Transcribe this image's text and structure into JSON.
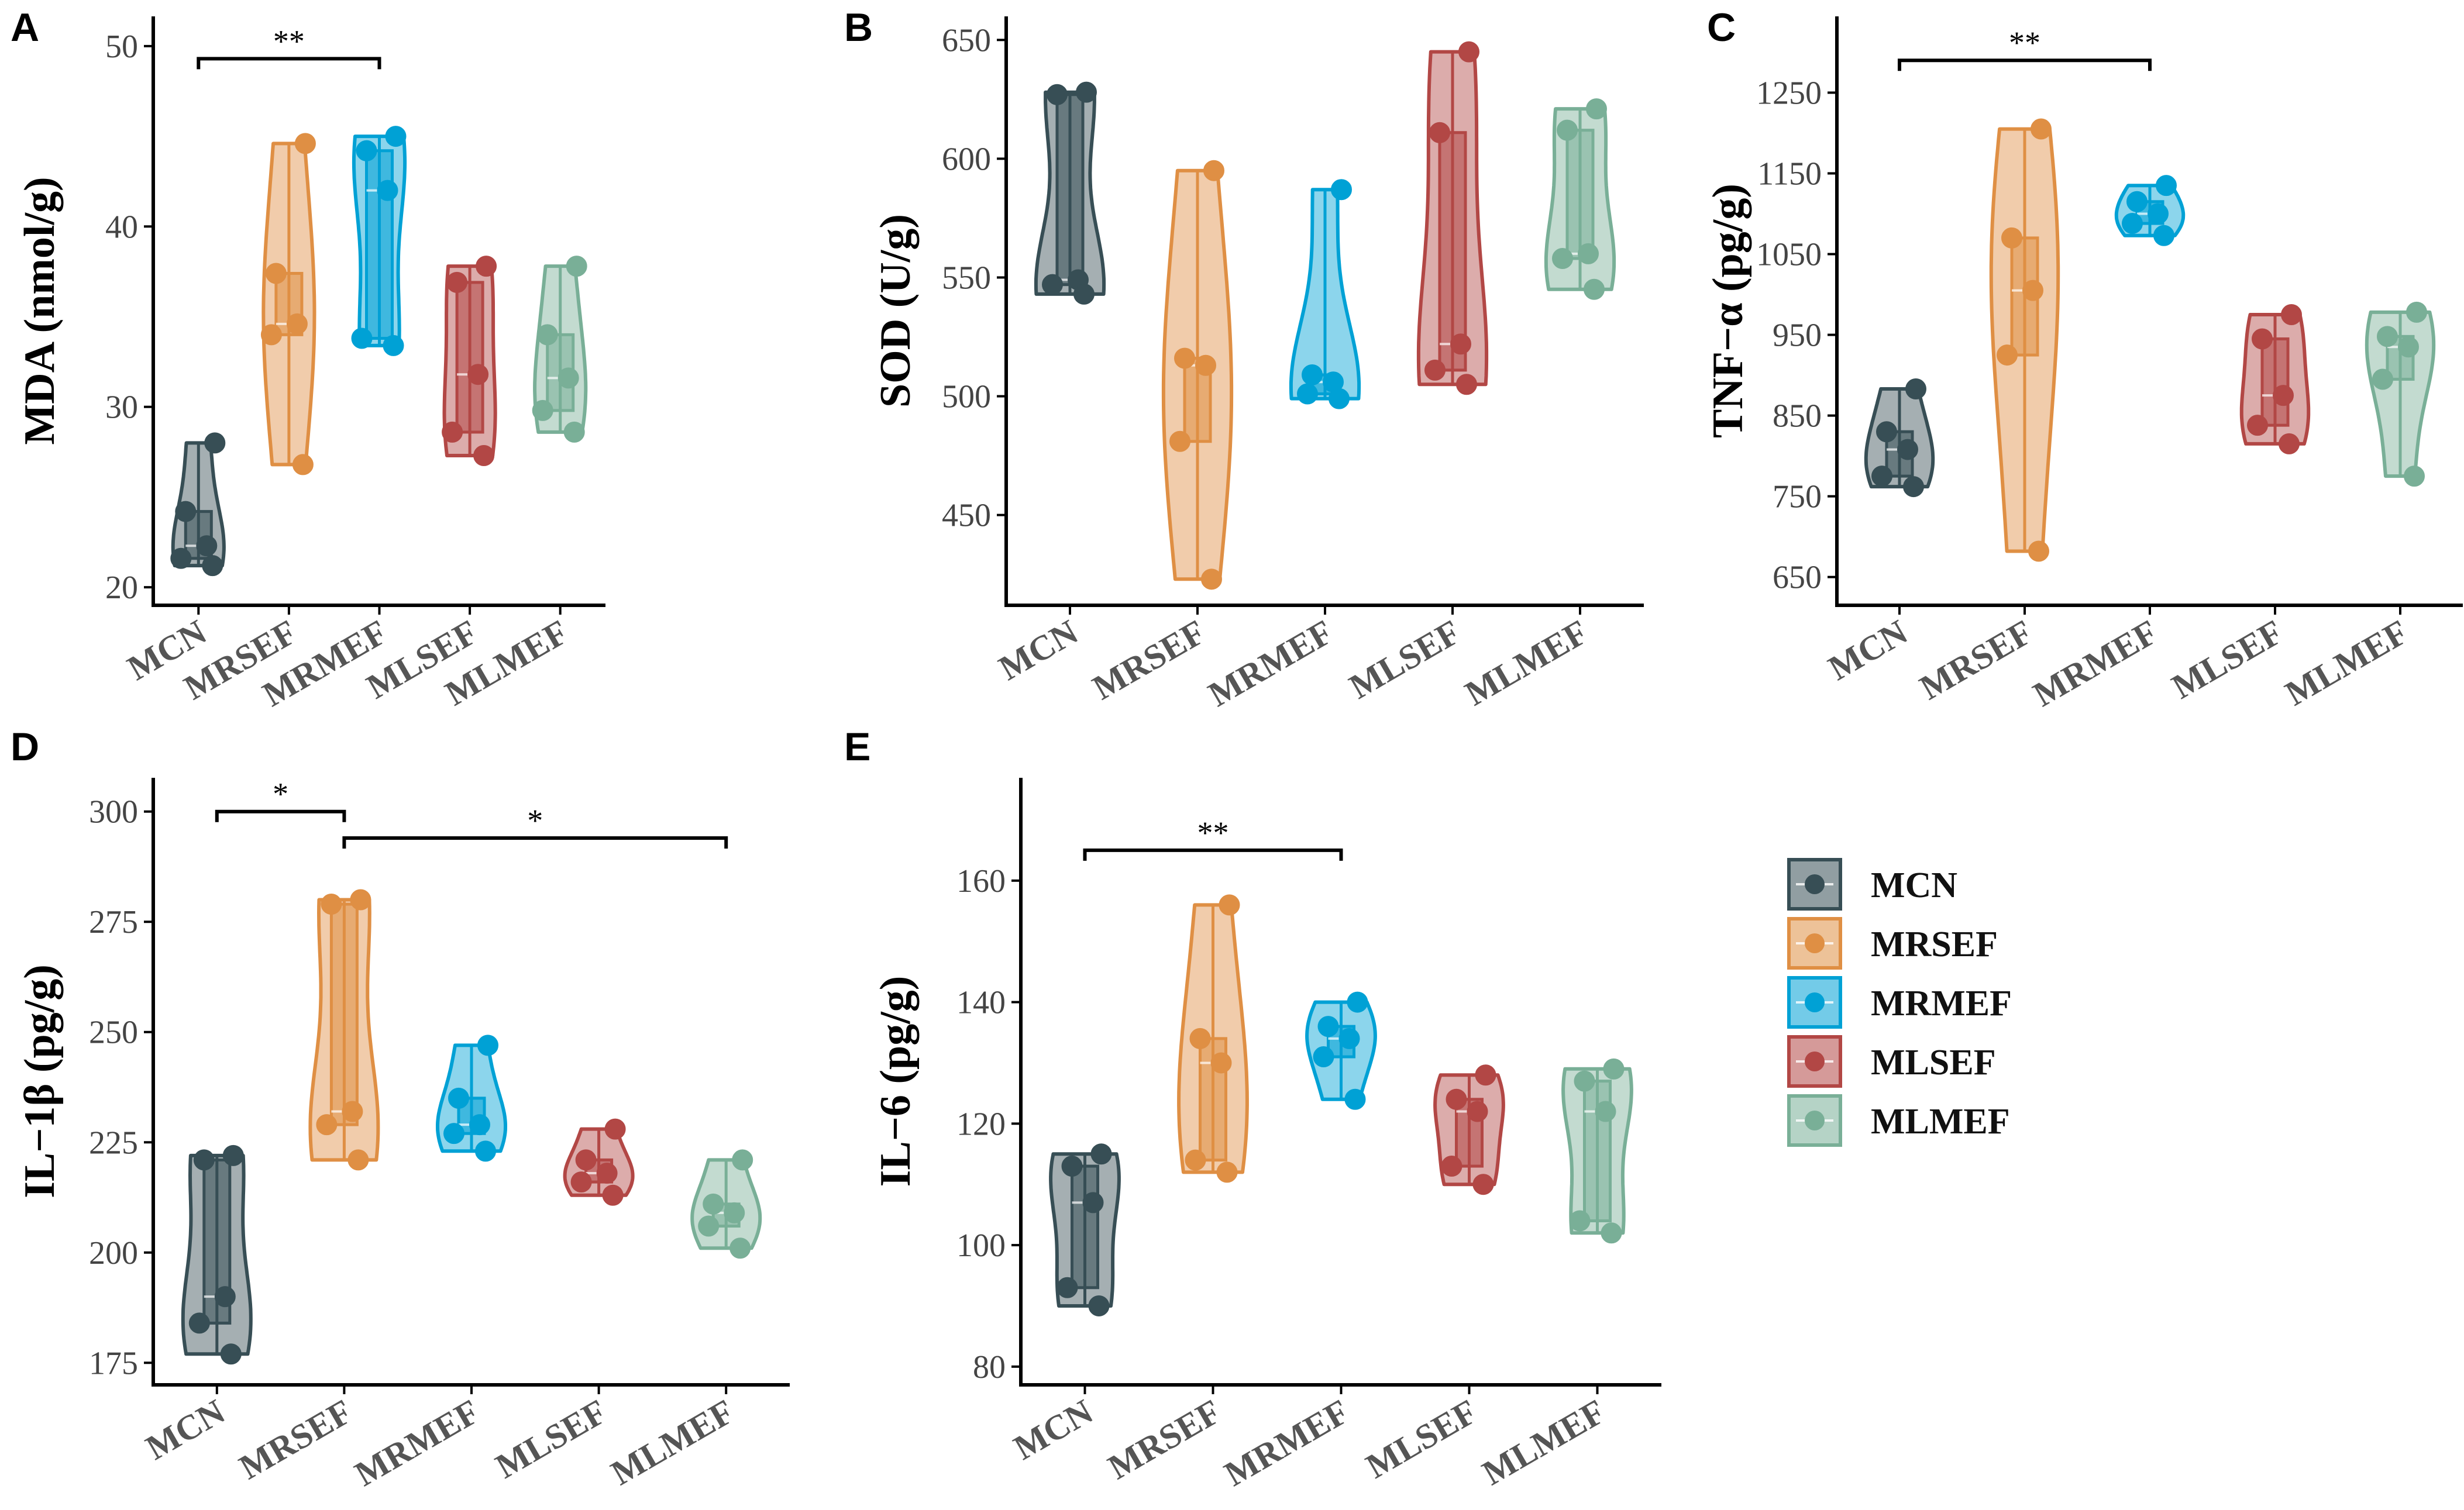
{
  "colors": {
    "MCN": "#374e55",
    "MRSEF": "#df8f44",
    "MRMEF": "#00a1d5",
    "MLSEF": "#b24745",
    "MLMEF": "#79af97"
  },
  "legend": [
    "MCN",
    "MRSEF",
    "MRMEF",
    "MLSEF",
    "MLMEF"
  ],
  "chart_data": [
    {
      "type": "violin-box",
      "panel": "A",
      "ylabel": "MDA (nmol/g)",
      "categories": [
        "MCN",
        "MRSEF",
        "MRMEF",
        "MLSEF",
        "MLMEF"
      ],
      "yticks": [
        20,
        30,
        40,
        50
      ],
      "ylim": [
        19,
        51
      ],
      "groups": [
        {
          "name": "MCN",
          "points": [
            28.0,
            24.2,
            22.3,
            21.6,
            21.2
          ],
          "min": 21.2,
          "q1": 21.6,
          "median": 22.3,
          "q3": 24.2,
          "max": 28.0
        },
        {
          "name": "MRSEF",
          "points": [
            44.6,
            37.4,
            34.6,
            34.0,
            26.8
          ],
          "min": 26.8,
          "q1": 34.0,
          "median": 34.6,
          "q3": 37.4,
          "max": 44.6
        },
        {
          "name": "MRMEF",
          "points": [
            45.0,
            44.2,
            42.0,
            33.8,
            33.4
          ],
          "min": 33.4,
          "q1": 33.8,
          "median": 42.0,
          "q3": 44.2,
          "max": 45.0
        },
        {
          "name": "MLSEF",
          "points": [
            37.8,
            36.9,
            31.8,
            28.6,
            27.3
          ],
          "min": 27.3,
          "q1": 28.6,
          "median": 31.8,
          "q3": 36.9,
          "max": 37.8
        },
        {
          "name": "MLMEF",
          "points": [
            37.8,
            34.0,
            31.6,
            29.8,
            28.6
          ],
          "min": 28.6,
          "q1": 29.8,
          "median": 31.6,
          "q3": 34.0,
          "max": 37.8
        }
      ],
      "brackets": [
        {
          "from": 0,
          "to": 2,
          "y": 49.3,
          "label": "**"
        }
      ]
    },
    {
      "type": "violin-box",
      "panel": "B",
      "ylabel": "SOD (U/g)",
      "categories": [
        "MCN",
        "MRSEF",
        "MRMEF",
        "MLSEF",
        "MLMEF"
      ],
      "yticks": [
        450,
        500,
        550,
        600,
        650
      ],
      "ylim": [
        412,
        655
      ],
      "groups": [
        {
          "name": "MCN",
          "points": [
            628,
            627,
            549,
            547,
            543
          ],
          "min": 543,
          "q1": 547,
          "median": 549,
          "q3": 627,
          "max": 628
        },
        {
          "name": "MRSEF",
          "points": [
            595,
            516,
            513,
            481,
            423
          ],
          "min": 423,
          "q1": 481,
          "median": 513,
          "q3": 516,
          "max": 595
        },
        {
          "name": "MRMEF",
          "points": [
            587,
            509,
            506,
            501,
            499
          ],
          "min": 499,
          "q1": 501,
          "median": 506,
          "q3": 509,
          "max": 587
        },
        {
          "name": "MLSEF",
          "points": [
            645,
            611,
            522,
            511,
            505
          ],
          "min": 505,
          "q1": 511,
          "median": 522,
          "q3": 611,
          "max": 645
        },
        {
          "name": "MLMEF",
          "points": [
            621,
            612,
            560,
            558,
            545
          ],
          "min": 545,
          "q1": 558,
          "median": 560,
          "q3": 612,
          "max": 621
        }
      ],
      "brackets": []
    },
    {
      "type": "violin-box",
      "panel": "C",
      "ylabel": "TNF−α (pg/g)",
      "categories": [
        "MCN",
        "MRSEF",
        "MRMEF",
        "MLSEF",
        "MLMEF"
      ],
      "yticks": [
        650,
        750,
        850,
        950,
        1050,
        1150,
        1250
      ],
      "ylim": [
        615,
        1330
      ],
      "groups": [
        {
          "name": "MCN",
          "points": [
            883,
            830,
            808,
            775,
            762
          ],
          "min": 762,
          "q1": 775,
          "median": 808,
          "q3": 830,
          "max": 883
        },
        {
          "name": "MRSEF",
          "points": [
            1205,
            1070,
            1005,
            925,
            682
          ],
          "min": 682,
          "q1": 925,
          "median": 1005,
          "q3": 1070,
          "max": 1205
        },
        {
          "name": "MRMEF",
          "points": [
            1135,
            1115,
            1100,
            1088,
            1073
          ],
          "min": 1073,
          "q1": 1088,
          "median": 1100,
          "q3": 1115,
          "max": 1135
        },
        {
          "name": "MLSEF",
          "points": [
            975,
            945,
            875,
            838,
            815
          ],
          "min": 815,
          "q1": 838,
          "median": 875,
          "q3": 945,
          "max": 975
        },
        {
          "name": "MLMEF",
          "points": [
            978,
            948,
            935,
            895,
            775
          ],
          "min": 775,
          "q1": 895,
          "median": 935,
          "q3": 948,
          "max": 978
        }
      ],
      "brackets": [
        {
          "from": 0,
          "to": 2,
          "y": 1290,
          "label": "**"
        }
      ]
    },
    {
      "type": "violin-box",
      "panel": "D",
      "ylabel": "IL−1β (pg/g)",
      "categories": [
        "MCN",
        "MRSEF",
        "MRMEF",
        "MLSEF",
        "MLMEF"
      ],
      "yticks": [
        175,
        200,
        225,
        250,
        275,
        300
      ],
      "ylim": [
        170,
        305
      ],
      "groups": [
        {
          "name": "MCN",
          "points": [
            222,
            221,
            190,
            184,
            177
          ],
          "min": 177,
          "q1": 184,
          "median": 190,
          "q3": 221,
          "max": 222
        },
        {
          "name": "MRSEF",
          "points": [
            280,
            279,
            232,
            229,
            221
          ],
          "min": 221,
          "q1": 229,
          "median": 232,
          "q3": 279,
          "max": 280
        },
        {
          "name": "MRMEF",
          "points": [
            247,
            235,
            229,
            227,
            223
          ],
          "min": 223,
          "q1": 227,
          "median": 229,
          "q3": 235,
          "max": 247
        },
        {
          "name": "MLSEF",
          "points": [
            228,
            221,
            218,
            216,
            213
          ],
          "min": 213,
          "q1": 216,
          "median": 218,
          "q3": 221,
          "max": 228
        },
        {
          "name": "MLMEF",
          "points": [
            221,
            211,
            209,
            206,
            201
          ],
          "min": 201,
          "q1": 206,
          "median": 209,
          "q3": 211,
          "max": 221
        }
      ],
      "brackets": [
        {
          "from": 0,
          "to": 1,
          "y": 300,
          "label": "*"
        },
        {
          "from": 1,
          "to": 4,
          "y": 294,
          "label": "*"
        }
      ]
    },
    {
      "type": "violin-box",
      "panel": "E",
      "ylabel": "IL−6 (pg/g)",
      "categories": [
        "MCN",
        "MRSEF",
        "MRMEF",
        "MLSEF",
        "MLMEF"
      ],
      "yticks": [
        80,
        100,
        120,
        140,
        160
      ],
      "ylim": [
        77,
        175
      ],
      "groups": [
        {
          "name": "MCN",
          "points": [
            115,
            113,
            107,
            93,
            90
          ],
          "min": 90,
          "q1": 93,
          "median": 107,
          "q3": 113,
          "max": 115
        },
        {
          "name": "MRSEF",
          "points": [
            156,
            134,
            130,
            114,
            112
          ],
          "min": 112,
          "q1": 114,
          "median": 130,
          "q3": 134,
          "max": 156
        },
        {
          "name": "MRMEF",
          "points": [
            140,
            136,
            134,
            131,
            124
          ],
          "min": 124,
          "q1": 131,
          "median": 134,
          "q3": 136,
          "max": 140
        },
        {
          "name": "MLSEF",
          "points": [
            128,
            124,
            122,
            113,
            110
          ],
          "min": 110,
          "q1": 113,
          "median": 122,
          "q3": 124,
          "max": 128
        },
        {
          "name": "MLMEF",
          "points": [
            129,
            127,
            122,
            104,
            102
          ],
          "min": 102,
          "q1": 104,
          "median": 122,
          "q3": 127,
          "max": 129
        }
      ],
      "brackets": [
        {
          "from": 0,
          "to": 2,
          "y": 165,
          "label": "**"
        }
      ]
    }
  ]
}
